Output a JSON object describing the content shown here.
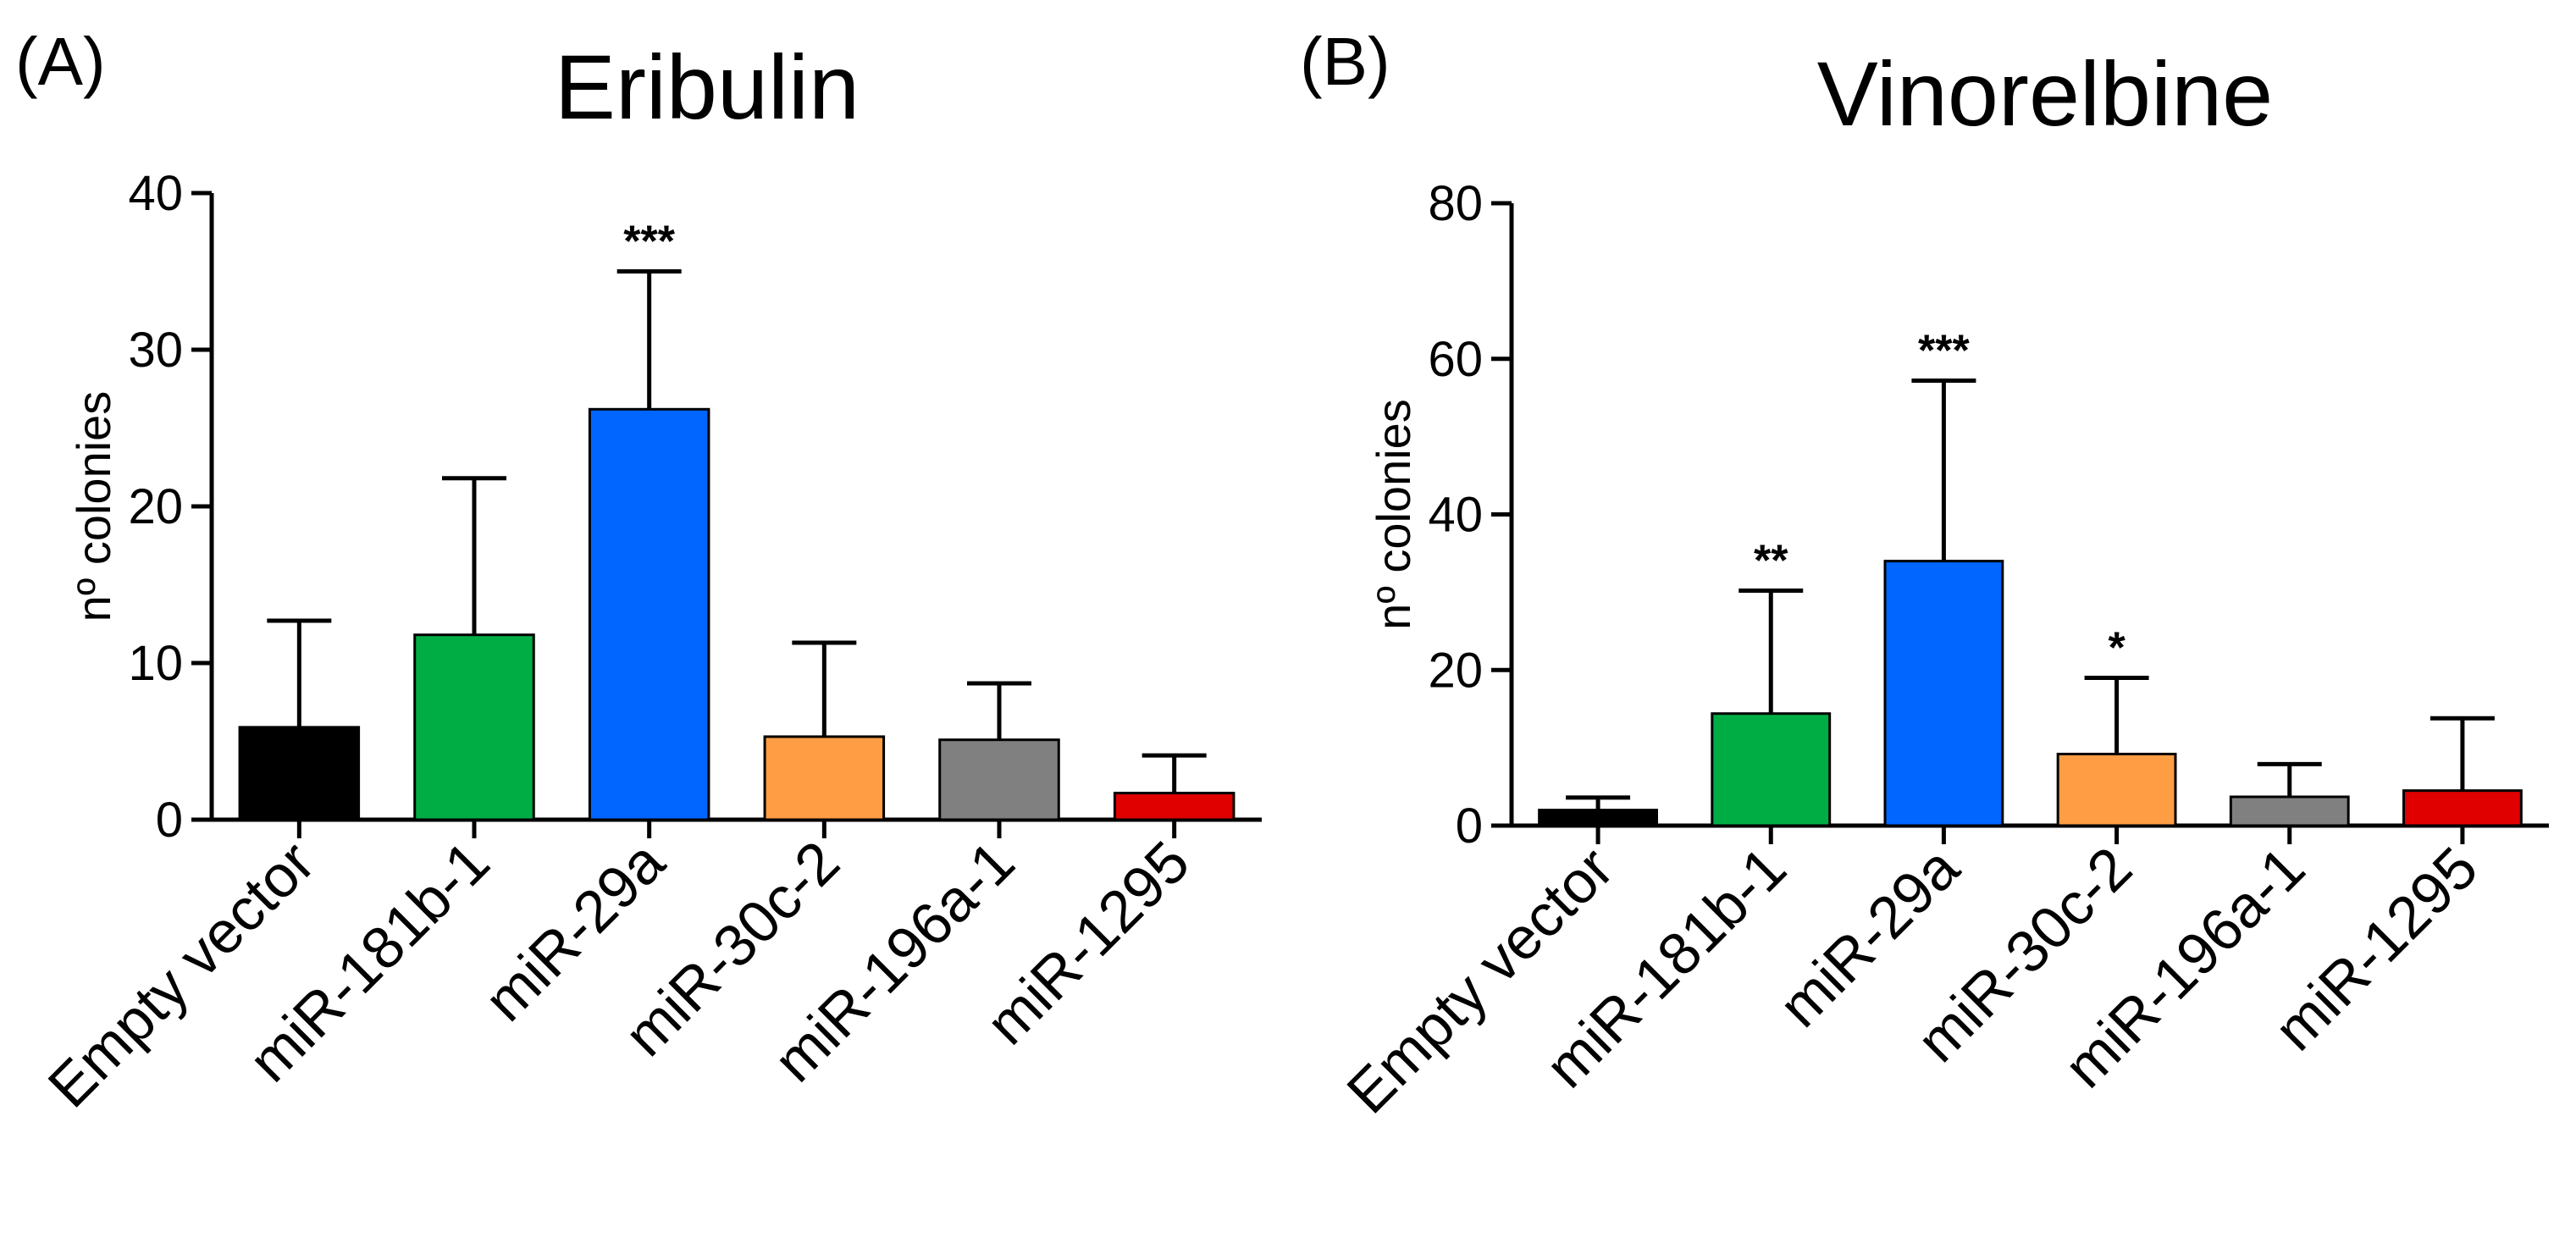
{
  "chart_data": [
    {
      "panel": "(A)",
      "type": "bar",
      "title": "Eribulin",
      "xlabel": "",
      "ylabel": "nº colonies",
      "ylim": [
        0,
        40
      ],
      "yticks": [
        0,
        10,
        20,
        30,
        40
      ],
      "categories": [
        "Empty vector",
        "miR-181b-1",
        "miR-29a",
        "miR-30c-2",
        "miR-196a-1",
        "miR-1295"
      ],
      "values": [
        5.9,
        11.8,
        26.2,
        5.3,
        5.1,
        1.7
      ],
      "errors": [
        6.8,
        10.0,
        8.8,
        6.0,
        3.6,
        2.4
      ],
      "significance": [
        "",
        "",
        "***",
        "",
        "",
        ""
      ],
      "colors": [
        "#000000",
        "#00ad45",
        "#0066ff",
        "#ff9d45",
        "#808080",
        "#e00000"
      ]
    },
    {
      "panel": "(B)",
      "type": "bar",
      "title": "Vinorelbine",
      "xlabel": "",
      "ylabel": "nº colonies",
      "ylim": [
        0,
        80
      ],
      "yticks": [
        0,
        20,
        40,
        60,
        80
      ],
      "categories": [
        "Empty vector",
        "miR-181b-1",
        "miR-29a",
        "miR-30c-2",
        "miR-196a-1",
        "miR-1295"
      ],
      "values": [
        2.0,
        14.4,
        34.0,
        9.2,
        3.7,
        4.5
      ],
      "errors": [
        1.6,
        15.8,
        23.2,
        9.8,
        4.2,
        9.3
      ],
      "significance": [
        "",
        "**",
        "***",
        "*",
        "",
        ""
      ],
      "colors": [
        "#000000",
        "#00ad45",
        "#0066ff",
        "#ff9d45",
        "#808080",
        "#e00000"
      ]
    }
  ]
}
